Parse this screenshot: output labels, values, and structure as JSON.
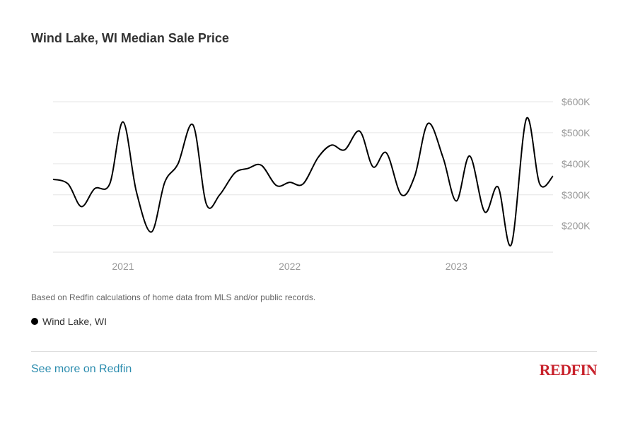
{
  "title": "Wind Lake, WI Median Sale Price",
  "note": "Based on Redfin calculations of home data from MLS and/or public records.",
  "legend": {
    "label": "Wind Lake, WI"
  },
  "footer": {
    "link_label": "See more on Redfin",
    "logo_text": "REDFIN"
  },
  "colors": {
    "line": "#000000",
    "grid": "#e6e6e6",
    "logo": "#c8222c",
    "link": "#2b8cae"
  },
  "chart_data": {
    "type": "line",
    "title": "Wind Lake, WI Median Sale Price",
    "xlabel": "",
    "ylabel": "",
    "x_ticks": [
      {
        "label": "2021",
        "x": 2021.0
      },
      {
        "label": "2022",
        "x": 2022.0
      },
      {
        "label": "2023",
        "x": 2023.0
      }
    ],
    "y_ticks": [
      {
        "label": "$200K",
        "value": 200000
      },
      {
        "label": "$300K",
        "value": 300000
      },
      {
        "label": "$400K",
        "value": 400000
      },
      {
        "label": "$500K",
        "value": 500000
      },
      {
        "label": "$600K",
        "value": 600000
      }
    ],
    "xlim": [
      2020.58,
      2023.58
    ],
    "ylim": [
      115000,
      600000
    ],
    "grid": true,
    "series": [
      {
        "name": "Wind Lake, WI",
        "x": [
          2020.58,
          2020.67,
          2020.75,
          2020.83,
          2020.92,
          2021.0,
          2021.08,
          2021.17,
          2021.25,
          2021.33,
          2021.42,
          2021.5,
          2021.58,
          2021.67,
          2021.75,
          2021.83,
          2021.92,
          2022.0,
          2022.08,
          2022.17,
          2022.25,
          2022.33,
          2022.42,
          2022.5,
          2022.58,
          2022.67,
          2022.75,
          2022.83,
          2022.92,
          2023.0,
          2023.08,
          2023.17,
          2023.25,
          2023.33,
          2023.42,
          2023.5,
          2023.58
        ],
        "values": [
          350000,
          335000,
          262000,
          320000,
          335000,
          535000,
          310000,
          180000,
          340000,
          400000,
          525000,
          270000,
          300000,
          370000,
          385000,
          395000,
          330000,
          340000,
          335000,
          420000,
          460000,
          445000,
          505000,
          390000,
          435000,
          300000,
          360000,
          530000,
          420000,
          280000,
          425000,
          245000,
          325000,
          140000,
          545000,
          335000,
          360000
        ]
      }
    ]
  }
}
